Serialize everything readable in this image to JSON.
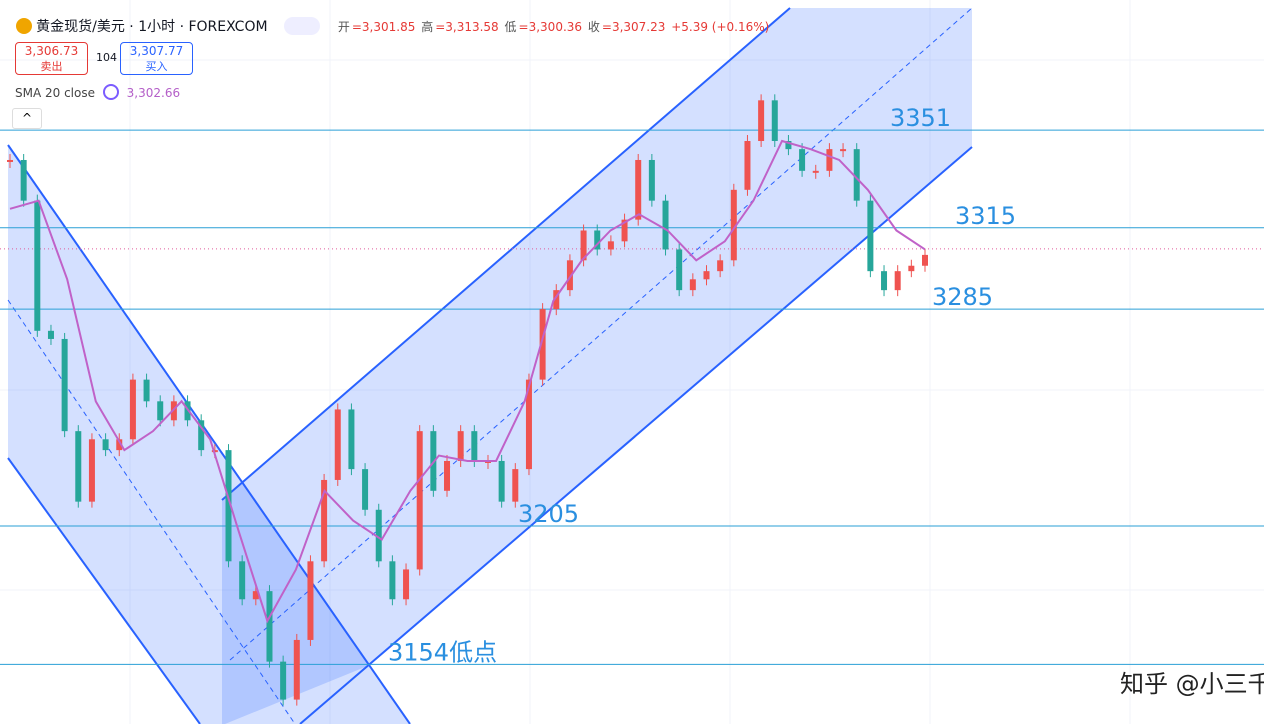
{
  "header": {
    "symbol": "黄金现货/美元 · 1小时 · FOREXCOM",
    "ohlc": [
      {
        "label": "开",
        "value": "=3,301.85"
      },
      {
        "label": "高",
        "value": "=3,313.58"
      },
      {
        "label": "低",
        "value": "=3,300.36"
      },
      {
        "label": "收",
        "value": "=3,307.23"
      }
    ],
    "change": "+5.39 (+0.16%)",
    "sell": {
      "price": "3,306.73",
      "label": "卖出"
    },
    "spread": "104",
    "buy": {
      "price": "3,307.77",
      "label": "买入"
    },
    "indicator": {
      "name": "SMA 20 close",
      "value": "3,302.66"
    }
  },
  "watermark": "知乎 @小三千",
  "chart_data": {
    "type": "candlestick",
    "ylim": [
      3132,
      3399
    ],
    "up_color": "#ef5350",
    "down_color": "#26a69a",
    "series": [
      {
        "name": "price",
        "values": [
          3340,
          3325,
          3277,
          3274,
          3240,
          3214,
          3237,
          3233,
          3237,
          3259,
          3251,
          3244,
          3251,
          3244,
          3233,
          3233,
          3192,
          3178,
          3181,
          3155,
          3141,
          3163,
          3192,
          3222,
          3248,
          3226,
          3211,
          3192,
          3178,
          3189,
          3240,
          3218,
          3229,
          3240,
          3229,
          3229,
          3214,
          3226,
          3259,
          3285,
          3292,
          3303,
          3314,
          3307,
          3310,
          3318,
          3340,
          3325,
          3307,
          3292,
          3296,
          3299,
          3303,
          3329,
          3347,
          3362,
          3347,
          3344,
          3336,
          3336,
          3344,
          3344,
          3325,
          3299,
          3292,
          3299,
          3301,
          3305
        ]
      },
      {
        "name": "SMA 20 close",
        "color": "#c062c8",
        "values": [
          3322,
          3325,
          3296,
          3251,
          3233,
          3240,
          3251,
          3237,
          3203,
          3170,
          3189,
          3218,
          3207,
          3200,
          3218,
          3231,
          3229,
          3229,
          3251,
          3288,
          3303,
          3314,
          3320,
          3314,
          3303,
          3310,
          3325,
          3347,
          3344,
          3340,
          3329,
          3314,
          3307
        ]
      }
    ],
    "current_price": 3307.23,
    "current_color": "#e05a9a",
    "level_color": "#2a9fd6",
    "levels": [
      3351,
      3315,
      3285,
      3205,
      {
        "value": 3154,
        "label": "3154低点"
      }
    ]
  }
}
